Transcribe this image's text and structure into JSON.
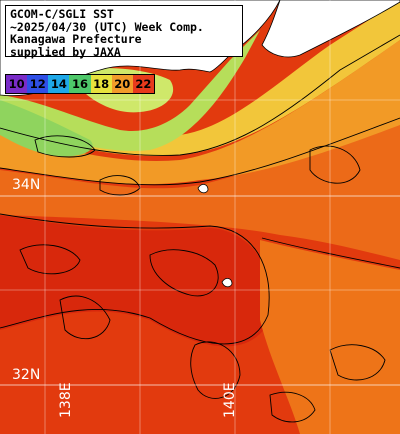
{
  "title": {
    "line1": "GCOM-C/SGLI SST",
    "line2": "~2025/04/30 (UTC) Week Comp.",
    "line3": "Kanagawa Prefecture",
    "line4": "supplied by JAXA"
  },
  "legend": {
    "labels": [
      "10",
      "12",
      "14",
      "16",
      "18",
      "20",
      "22"
    ],
    "colors": [
      "#7a2cc8",
      "#2f4fe6",
      "#1fa8e8",
      "#4ec86a",
      "#e8e23c",
      "#f29b2a",
      "#e83a1c"
    ]
  },
  "grid": {
    "lat_labels": [
      "34N",
      "32N"
    ],
    "lon_labels": [
      "138E",
      "140E"
    ]
  },
  "colors": {
    "land": "#ffffff",
    "sea_warm": "#e53d10",
    "sea_mid": "#f07a1a",
    "sea_cool": "#f4b02a",
    "sea_cold": "#b8e05a",
    "grid": "#ffffff",
    "contour": "#000000"
  }
}
